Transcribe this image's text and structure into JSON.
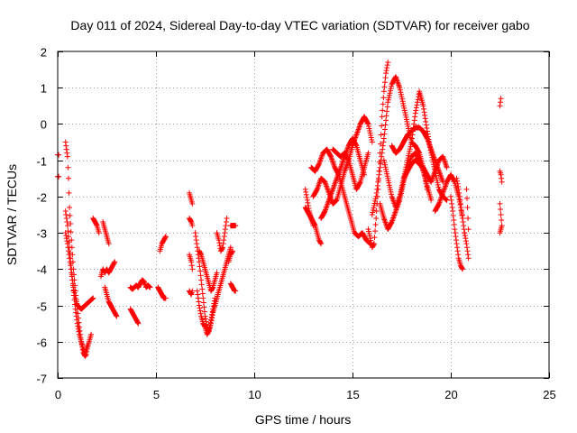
{
  "chart_data": {
    "type": "scatter",
    "marker": "plus",
    "color": "#ff0000",
    "title": "Day 011 of 2024, Sidereal Day-to-day VTEC variation (SDTVAR) for receiver gabo",
    "xlabel": "GPS time / hours",
    "ylabel": "SDTVAR / TECUs",
    "xlim": [
      0,
      25
    ],
    "ylim": [
      -7,
      2
    ],
    "xticks": [
      0,
      5,
      10,
      15,
      20,
      25
    ],
    "yticks": [
      -7,
      -6,
      -5,
      -4,
      -3,
      -2,
      -1,
      0,
      1,
      2
    ],
    "grid": true,
    "series": [
      {
        "name": "SDTVAR",
        "tracks": [
          {
            "x": [
              0.0,
              0.05
            ],
            "y": [
              -1.45,
              -1.45
            ]
          },
          {
            "x": [
              0.0,
              0.05
            ],
            "y": [
              -0.85,
              -0.85
            ]
          },
          {
            "x": [
              0.4,
              0.45,
              0.5,
              0.55,
              0.6,
              0.7,
              0.8,
              0.9,
              1.0,
              1.1,
              1.2,
              1.3,
              1.4,
              1.45,
              1.5,
              1.6,
              1.7
            ],
            "y": [
              -0.5,
              -0.7,
              -0.9,
              -1.5,
              -2.3,
              -3.2,
              -4.0,
              -4.6,
              -5.1,
              -5.6,
              -6.0,
              -6.3,
              -6.4,
              -6.35,
              -6.2,
              -6.0,
              -5.8
            ]
          },
          {
            "x": [
              0.4,
              0.5,
              0.6,
              0.7,
              0.8,
              0.9,
              1.0,
              1.1,
              1.2,
              1.3,
              1.4,
              1.5
            ],
            "y": [
              -2.4,
              -2.8,
              -3.4,
              -4.0,
              -4.6,
              -5.1,
              -5.5,
              -5.8,
              -6.0,
              -6.2,
              -6.3,
              -6.1
            ]
          },
          {
            "x": [
              0.4,
              0.5,
              0.6,
              0.7,
              0.8,
              0.9,
              1.0,
              1.2,
              1.4,
              1.6,
              1.8
            ],
            "y": [
              -3.0,
              -3.3,
              -3.7,
              -4.1,
              -4.5,
              -4.8,
              -5.0,
              -5.1,
              -5.0,
              -4.9,
              -4.8
            ]
          },
          {
            "x": [
              1.8,
              1.9,
              2.0,
              2.1
            ],
            "y": [
              -2.6,
              -2.7,
              -2.8,
              -3.0
            ]
          },
          {
            "x": [
              2.3,
              2.4,
              2.5,
              2.6
            ],
            "y": [
              -2.7,
              -2.9,
              -3.1,
              -3.3
            ]
          },
          {
            "x": [
              2.2,
              2.3,
              2.4,
              2.5,
              2.6,
              2.7,
              2.8,
              2.9
            ],
            "y": [
              -4.2,
              -4.0,
              -4.1,
              -4.0,
              -4.1,
              -4.0,
              -3.9,
              -3.8
            ]
          },
          {
            "x": [
              2.4,
              2.5,
              2.6,
              2.7,
              2.8,
              2.9,
              3.0
            ],
            "y": [
              -4.5,
              -4.7,
              -4.9,
              -5.0,
              -5.1,
              -5.2,
              -5.3
            ]
          },
          {
            "x": [
              3.7,
              3.8,
              3.9,
              4.0,
              4.1,
              4.2,
              4.3,
              4.4,
              4.5,
              4.6,
              4.7
            ],
            "y": [
              -4.5,
              -4.55,
              -4.5,
              -4.45,
              -4.5,
              -4.4,
              -4.3,
              -4.35,
              -4.5,
              -4.45,
              -4.5
            ]
          },
          {
            "x": [
              3.7,
              3.8,
              3.9,
              4.0,
              4.1
            ],
            "y": [
              -5.1,
              -5.2,
              -5.3,
              -5.4,
              -5.5
            ]
          },
          {
            "x": [
              5.1,
              5.2,
              5.3,
              5.4,
              5.5
            ],
            "y": [
              -4.5,
              -4.6,
              -4.7,
              -4.8,
              -4.8
            ]
          },
          {
            "x": [
              5.2,
              5.3,
              5.4,
              5.5
            ],
            "y": [
              -3.5,
              -3.3,
              -3.2,
              -3.1
            ]
          },
          {
            "x": [
              6.7,
              6.75,
              6.8,
              6.85
            ],
            "y": [
              -1.9,
              -2.0,
              -2.1,
              -2.2
            ]
          },
          {
            "x": [
              6.7,
              6.8,
              6.85
            ],
            "y": [
              -2.6,
              -2.7,
              -2.8
            ]
          },
          {
            "x": [
              6.7,
              6.8,
              6.85
            ],
            "y": [
              -3.6,
              -3.8,
              -4.0
            ]
          },
          {
            "x": [
              6.7,
              6.8,
              6.85
            ],
            "y": [
              -4.6,
              -4.7,
              -4.6
            ]
          },
          {
            "x": [
              7.0,
              7.1,
              7.2,
              7.3,
              7.4,
              7.5,
              7.6,
              7.7,
              7.8,
              7.9,
              8.0
            ],
            "y": [
              -3.0,
              -3.4,
              -3.8,
              -4.3,
              -4.8,
              -5.3,
              -5.6,
              -5.7,
              -5.5,
              -5.2,
              -5.0
            ]
          },
          {
            "x": [
              7.1,
              7.2,
              7.3,
              7.4,
              7.5,
              7.6,
              7.7,
              7.8,
              7.9,
              8.0
            ],
            "y": [
              -4.6,
              -5.0,
              -5.3,
              -5.5,
              -5.6,
              -5.8,
              -5.7,
              -5.4,
              -5.1,
              -4.8
            ]
          },
          {
            "x": [
              7.2,
              7.3,
              7.4,
              7.5,
              7.6,
              7.7,
              7.8,
              7.9,
              8.0,
              8.1
            ],
            "y": [
              -3.5,
              -3.6,
              -3.8,
              -4.0,
              -4.2,
              -4.4,
              -4.6,
              -4.5,
              -4.3,
              -4.1
            ]
          },
          {
            "x": [
              8.0,
              8.1,
              8.2,
              8.3,
              8.4,
              8.5,
              8.6,
              8.7,
              8.8
            ],
            "y": [
              -5.0,
              -4.8,
              -4.6,
              -4.4,
              -4.2,
              -4.0,
              -3.8,
              -3.6,
              -3.4
            ]
          },
          {
            "x": [
              8.1,
              8.2,
              8.3,
              8.4,
              8.5,
              8.6
            ],
            "y": [
              -3.0,
              -3.2,
              -3.5,
              -3.4,
              -3.0,
              -2.6
            ]
          },
          {
            "x": [
              8.7,
              8.8,
              8.9
            ],
            "y": [
              -3.8,
              -3.6,
              -3.5
            ]
          },
          {
            "x": [
              8.8,
              8.9,
              9.0,
              9.05
            ],
            "y": [
              -4.4,
              -4.5,
              -4.6,
              -4.6
            ]
          },
          {
            "x": [
              8.8,
              8.9,
              9.0,
              9.05
            ],
            "y": [
              -2.8,
              -2.8,
              -2.8,
              -2.8
            ]
          },
          {
            "x": [
              12.6,
              12.7,
              12.8,
              12.9,
              13.0,
              13.1,
              13.2,
              13.3,
              13.4
            ],
            "y": [
              -1.8,
              -2.1,
              -2.4,
              -2.6,
              -2.7,
              -2.8,
              -3.0,
              -3.2,
              -3.3
            ]
          },
          {
            "x": [
              12.6,
              12.7,
              12.8,
              12.9,
              13.0
            ],
            "y": [
              -2.3,
              -2.4,
              -2.5,
              -2.6,
              -2.8
            ]
          },
          {
            "x": [
              12.9,
              13.1,
              13.3,
              13.5,
              13.7,
              13.9,
              14.1,
              14.3,
              14.5,
              14.7,
              14.9,
              15.1,
              15.3,
              15.5,
              15.7,
              15.9
            ],
            "y": [
              -1.2,
              -1.3,
              -1.1,
              -0.8,
              -0.7,
              -0.9,
              -1.2,
              -1.4,
              -1.8,
              -2.2,
              -2.6,
              -3.0,
              -3.1,
              -3.0,
              -3.2,
              -3.3
            ]
          },
          {
            "x": [
              13.0,
              13.2,
              13.4,
              13.6,
              13.8,
              14.0,
              14.2,
              14.4,
              14.6,
              14.8,
              15.0,
              15.2,
              15.4,
              15.6,
              15.8,
              16.0
            ],
            "y": [
              -2.0,
              -1.8,
              -1.5,
              -1.6,
              -1.9,
              -2.2,
              -2.1,
              -1.7,
              -1.3,
              -1.0,
              -0.6,
              -0.3,
              0.0,
              0.2,
              0.0,
              -0.5
            ]
          },
          {
            "x": [
              13.4,
              13.6,
              13.8,
              14.0,
              14.2,
              14.4,
              14.6,
              14.8,
              15.0,
              15.2,
              15.4,
              15.6
            ],
            "y": [
              -2.6,
              -2.4,
              -2.1,
              -1.8,
              -1.5,
              -1.2,
              -0.9,
              -0.6,
              -0.4,
              -0.6,
              -1.0,
              -1.4
            ]
          },
          {
            "x": [
              14.0,
              14.2,
              14.4,
              14.6,
              14.8,
              15.0,
              15.2,
              15.4,
              15.6,
              15.8
            ],
            "y": [
              -0.7,
              -0.8,
              -0.9,
              -0.8,
              -1.0,
              -1.4,
              -1.8,
              -1.6,
              -1.2,
              -0.8
            ]
          },
          {
            "x": [
              15.8,
              16.0,
              16.1,
              16.2,
              16.3,
              16.4,
              16.5,
              16.6,
              16.7,
              16.8
            ],
            "y": [
              -2.9,
              -3.4,
              -3.3,
              -2.6,
              -1.8,
              -0.8,
              0.2,
              0.9,
              1.4,
              1.7
            ]
          },
          {
            "x": [
              16.0,
              16.2,
              16.4,
              16.6,
              16.8,
              17.0,
              17.2,
              17.4,
              17.6,
              17.8,
              18.0,
              18.2,
              18.4,
              18.6,
              18.8
            ],
            "y": [
              -2.5,
              -2.0,
              -1.2,
              -0.4,
              0.6,
              1.1,
              1.3,
              1.0,
              0.5,
              0.0,
              -0.5,
              -0.6,
              -0.8,
              -1.2,
              -1.8
            ]
          },
          {
            "x": [
              16.6,
              16.8,
              17.0,
              17.2,
              17.4,
              17.6,
              17.8,
              18.0,
              18.2,
              18.4,
              18.6,
              18.8,
              19.0,
              19.2,
              19.4,
              19.6,
              19.8
            ],
            "y": [
              -1.0,
              -1.5,
              -2.0,
              -2.3,
              -2.0,
              -1.5,
              -1.0,
              -0.5,
              0.3,
              0.9,
              0.5,
              -0.2,
              -0.8,
              -1.3,
              -1.8,
              -2.0,
              -2.1
            ]
          },
          {
            "x": [
              16.4,
              16.6,
              16.8,
              17.0,
              17.2,
              17.4,
              17.6,
              17.8,
              18.0,
              18.2,
              18.4,
              18.6,
              18.8,
              19.0
            ],
            "y": [
              -2.2,
              -2.6,
              -2.9,
              -2.7,
              -2.4,
              -2.1,
              -1.6,
              -1.2,
              -0.9,
              -0.8,
              -1.0,
              -1.3,
              -1.7,
              -2.1
            ]
          },
          {
            "x": [
              17.0,
              17.2,
              17.4,
              17.6,
              17.8,
              18.0,
              18.2,
              18.4,
              18.6,
              18.8,
              19.0,
              19.2,
              19.4,
              19.6
            ],
            "y": [
              -0.6,
              -0.8,
              -0.7,
              -0.5,
              -0.3,
              -0.2,
              -0.1,
              -0.1,
              -0.2,
              -0.4,
              -0.7,
              -1.0,
              -1.3,
              -1.6
            ]
          },
          {
            "x": [
              17.6,
              17.8,
              18.0,
              18.2,
              18.4,
              18.6,
              18.8,
              19.0,
              19.2,
              19.4,
              19.6,
              19.8
            ],
            "y": [
              -1.5,
              -1.3,
              -1.1,
              -1.0,
              -1.1,
              -1.2,
              -1.4,
              -1.6,
              -1.3,
              -1.0,
              -0.9,
              -1.2
            ]
          },
          {
            "x": [
              19.2,
              19.4,
              19.6,
              19.8,
              20.0,
              20.2,
              20.4,
              20.6
            ],
            "y": [
              -2.4,
              -2.2,
              -1.9,
              -1.6,
              -1.4,
              -1.6,
              -2.0,
              -2.6
            ]
          },
          {
            "x": [
              20.0,
              20.1,
              20.2,
              20.3,
              20.4,
              20.5,
              20.6
            ],
            "y": [
              -2.0,
              -2.4,
              -2.9,
              -3.3,
              -3.7,
              -3.9,
              -4.0
            ]
          },
          {
            "x": [
              20.3,
              20.4,
              20.5,
              20.6,
              20.7
            ],
            "y": [
              -1.5,
              -1.8,
              -2.2,
              -2.6,
              -3.0
            ]
          },
          {
            "x": [
              20.8,
              20.85,
              20.9
            ],
            "y": [
              -1.8,
              -2.3,
              -2.9
            ]
          },
          {
            "x": [
              20.7,
              20.8,
              20.9
            ],
            "y": [
              -3.0,
              -3.3,
              -3.7
            ]
          },
          {
            "x": [
              22.5,
              22.55
            ],
            "y": [
              0.5,
              0.7
            ]
          },
          {
            "x": [
              22.5,
              22.55,
              22.6
            ],
            "y": [
              -1.3,
              -1.4,
              -1.6
            ]
          },
          {
            "x": [
              22.5,
              22.55,
              22.6,
              22.5
            ],
            "y": [
              -2.2,
              -2.5,
              -2.8,
              -3.0
            ]
          }
        ]
      }
    ]
  }
}
